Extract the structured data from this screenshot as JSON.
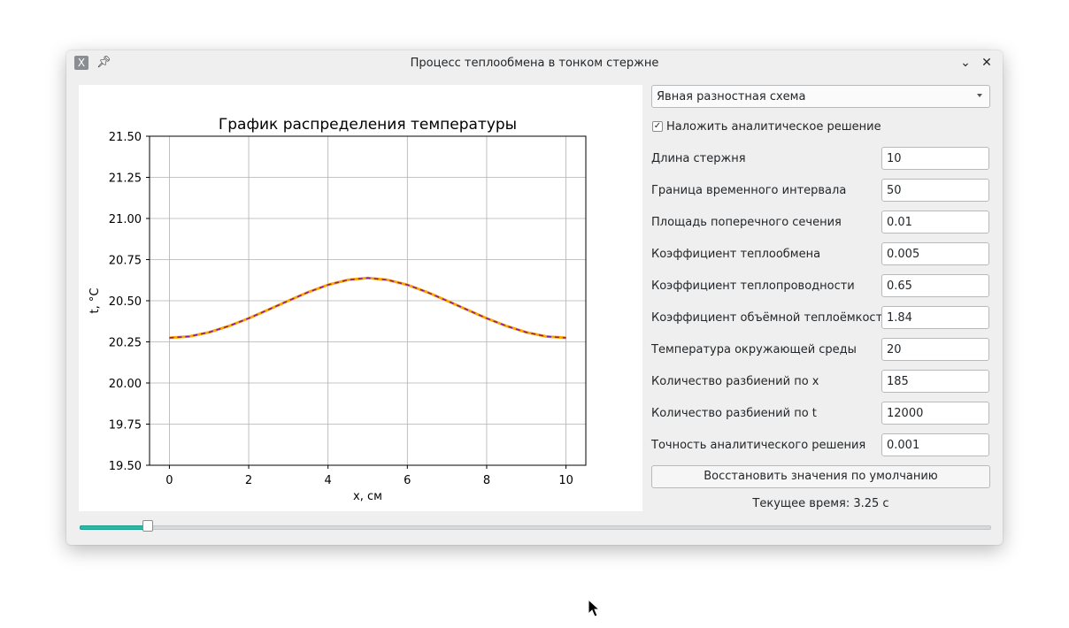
{
  "window": {
    "title": "Процесс теплообмена в тонком стержне",
    "icons": {
      "app": "app-x-icon",
      "pin": "pin-icon",
      "minimize": "chevron-down-icon",
      "close": "close-icon"
    }
  },
  "panel": {
    "scheme_select": {
      "value": "Явная разностная схема"
    },
    "overlay_checkbox": {
      "label": "Наложить аналитическое решение",
      "checked": true
    },
    "params": [
      {
        "label": "Длина стержня",
        "value": "10"
      },
      {
        "label": "Граница временного интервала",
        "value": "50"
      },
      {
        "label": "Площадь поперечного сечения",
        "value": "0.01"
      },
      {
        "label": "Коэффициент теплообмена",
        "value": "0.005"
      },
      {
        "label": "Коэффициент теплопроводности",
        "value": "0.65"
      },
      {
        "label": "Коэффициент объёмной теплоёмкости",
        "value": "1.84"
      },
      {
        "label": "Температура окружающей среды",
        "value": "20"
      },
      {
        "label": "Количество разбиений по x",
        "value": "185"
      },
      {
        "label": "Количество разбиений по t",
        "value": "12000"
      },
      {
        "label": "Точность аналитического решения",
        "value": "0.001"
      }
    ],
    "reset_button": "Восстановить значения по умолчанию",
    "time_label": "Текущее время: 3.25 с"
  },
  "slider": {
    "fraction": 0.07
  },
  "chart_data": {
    "type": "line",
    "title": "График распределения температуры",
    "xlabel": "x, см",
    "ylabel": "t, °C",
    "xlim": [
      -0.5,
      10.5
    ],
    "ylim": [
      19.5,
      21.5
    ],
    "x_ticks": [
      "0",
      "2",
      "4",
      "6",
      "8",
      "10"
    ],
    "y_ticks": [
      "19.50",
      "19.75",
      "20.00",
      "20.25",
      "20.50",
      "20.75",
      "21.00",
      "21.25",
      "21.50"
    ],
    "grid": true,
    "series": [
      {
        "color": "#ffa500",
        "style": "solid",
        "x": [
          0,
          0.5,
          1,
          1.5,
          2,
          2.5,
          3,
          3.5,
          4,
          4.5,
          5,
          5.5,
          6,
          6.5,
          7,
          7.5,
          8,
          8.5,
          9,
          9.5,
          10
        ],
        "y": [
          20.275,
          20.283,
          20.308,
          20.346,
          20.393,
          20.446,
          20.5,
          20.552,
          20.597,
          20.627,
          20.638,
          20.627,
          20.597,
          20.552,
          20.5,
          20.446,
          20.393,
          20.346,
          20.308,
          20.283,
          20.275
        ]
      },
      {
        "color": "#7d1fa0",
        "style": "dashed",
        "x": [
          0,
          0.5,
          1,
          1.5,
          2,
          2.5,
          3,
          3.5,
          4,
          4.5,
          5,
          5.5,
          6,
          6.5,
          7,
          7.5,
          8,
          8.5,
          9,
          9.5,
          10
        ],
        "y": [
          20.275,
          20.283,
          20.308,
          20.346,
          20.393,
          20.446,
          20.5,
          20.552,
          20.597,
          20.627,
          20.638,
          20.627,
          20.597,
          20.552,
          20.5,
          20.446,
          20.393,
          20.346,
          20.308,
          20.283,
          20.275
        ]
      }
    ]
  }
}
